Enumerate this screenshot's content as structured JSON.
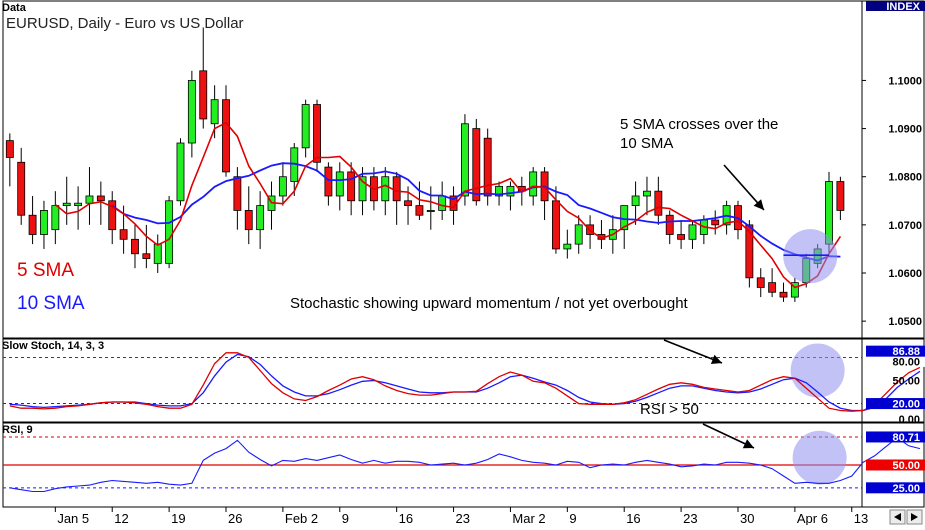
{
  "chart_data": [
    {
      "panel": "Data",
      "type": "candlestick",
      "title": "EURUSD, Daily - Euro vs US Dollar",
      "scale_label": "INDEX",
      "ylim": [
        1.0465,
        1.1165
      ],
      "yticks": [
        "1.1000",
        "1.0900",
        "1.0800",
        "1.0700",
        "1.0600",
        "1.0500"
      ],
      "series_legend": [
        {
          "name": "5 SMA",
          "color": "#e00000"
        },
        {
          "name": "10 SMA",
          "color": "#1a1aff"
        }
      ],
      "candles": [
        {
          "d": "Dec 30",
          "o": 1.0875,
          "h": 1.089,
          "l": 1.078,
          "c": 1.084
        },
        {
          "d": "Dec 31",
          "o": 1.083,
          "h": 1.086,
          "l": 1.07,
          "c": 1.072
        },
        {
          "d": "Jan 1",
          "o": 1.072,
          "h": 1.076,
          "l": 1.066,
          "c": 1.068
        },
        {
          "d": "Jan 2",
          "o": 1.068,
          "h": 1.075,
          "l": 1.065,
          "c": 1.073
        },
        {
          "d": "Jan 5",
          "o": 1.069,
          "h": 1.077,
          "l": 1.066,
          "c": 1.074
        },
        {
          "d": "Jan 6",
          "o": 1.074,
          "h": 1.08,
          "l": 1.07,
          "c": 1.0745
        },
        {
          "d": "Jan 7",
          "o": 1.074,
          "h": 1.078,
          "l": 1.069,
          "c": 1.0745
        },
        {
          "d": "Jan 8",
          "o": 1.0745,
          "h": 1.082,
          "l": 1.07,
          "c": 1.076
        },
        {
          "d": "Jan 9",
          "o": 1.076,
          "h": 1.079,
          "l": 1.07,
          "c": 1.075
        },
        {
          "d": "Jan 12",
          "o": 1.075,
          "h": 1.077,
          "l": 1.066,
          "c": 1.069
        },
        {
          "d": "Jan 13",
          "o": 1.069,
          "h": 1.074,
          "l": 1.064,
          "c": 1.067
        },
        {
          "d": "Jan 14",
          "o": 1.067,
          "h": 1.07,
          "l": 1.061,
          "c": 1.064
        },
        {
          "d": "Jan 15",
          "o": 1.064,
          "h": 1.07,
          "l": 1.061,
          "c": 1.063
        },
        {
          "d": "Jan 16",
          "o": 1.062,
          "h": 1.068,
          "l": 1.06,
          "c": 1.066
        },
        {
          "d": "Jan 19",
          "o": 1.062,
          "h": 1.076,
          "l": 1.061,
          "c": 1.075
        },
        {
          "d": "Jan 20",
          "o": 1.075,
          "h": 1.088,
          "l": 1.074,
          "c": 1.087
        },
        {
          "d": "Jan 21",
          "o": 1.087,
          "h": 1.102,
          "l": 1.084,
          "c": 1.1
        },
        {
          "d": "Jan 22",
          "o": 1.102,
          "h": 1.111,
          "l": 1.09,
          "c": 1.092
        },
        {
          "d": "Jan 23",
          "o": 1.091,
          "h": 1.099,
          "l": 1.088,
          "c": 1.096
        },
        {
          "d": "Jan 26",
          "o": 1.096,
          "h": 1.099,
          "l": 1.08,
          "c": 1.081
        },
        {
          "d": "Jan 27",
          "o": 1.08,
          "h": 1.082,
          "l": 1.069,
          "c": 1.073
        },
        {
          "d": "Jan 28",
          "o": 1.073,
          "h": 1.078,
          "l": 1.066,
          "c": 1.069
        },
        {
          "d": "Jan 29",
          "o": 1.069,
          "h": 1.077,
          "l": 1.065,
          "c": 1.074
        },
        {
          "d": "Jan 30",
          "o": 1.073,
          "h": 1.079,
          "l": 1.069,
          "c": 1.076
        },
        {
          "d": "Feb 2",
          "o": 1.076,
          "h": 1.083,
          "l": 1.074,
          "c": 1.08
        },
        {
          "d": "Feb 3",
          "o": 1.079,
          "h": 1.087,
          "l": 1.076,
          "c": 1.086
        },
        {
          "d": "Feb 4",
          "o": 1.086,
          "h": 1.096,
          "l": 1.084,
          "c": 1.095
        },
        {
          "d": "Feb 5",
          "o": 1.095,
          "h": 1.096,
          "l": 1.081,
          "c": 1.083
        },
        {
          "d": "Feb 6",
          "o": 1.082,
          "h": 1.083,
          "l": 1.074,
          "c": 1.076
        },
        {
          "d": "Feb 9",
          "o": 1.076,
          "h": 1.083,
          "l": 1.073,
          "c": 1.081
        },
        {
          "d": "Feb 10",
          "o": 1.081,
          "h": 1.083,
          "l": 1.072,
          "c": 1.075
        },
        {
          "d": "Feb 11",
          "o": 1.075,
          "h": 1.082,
          "l": 1.072,
          "c": 1.08
        },
        {
          "d": "Feb 12",
          "o": 1.08,
          "h": 1.082,
          "l": 1.073,
          "c": 1.075
        },
        {
          "d": "Feb 13",
          "o": 1.075,
          "h": 1.082,
          "l": 1.072,
          "c": 1.08
        },
        {
          "d": "Feb 16",
          "o": 1.08,
          "h": 1.081,
          "l": 1.07,
          "c": 1.075
        },
        {
          "d": "Feb 17",
          "o": 1.075,
          "h": 1.078,
          "l": 1.07,
          "c": 1.074
        },
        {
          "d": "Feb 18",
          "o": 1.074,
          "h": 1.079,
          "l": 1.071,
          "c": 1.072
        },
        {
          "d": "Feb 19",
          "o": 1.073,
          "h": 1.078,
          "l": 1.069,
          "c": 1.073
        },
        {
          "d": "Feb 20",
          "o": 1.073,
          "h": 1.079,
          "l": 1.071,
          "c": 1.076
        },
        {
          "d": "Feb 23",
          "o": 1.076,
          "h": 1.078,
          "l": 1.07,
          "c": 1.073
        },
        {
          "d": "Feb 24",
          "o": 1.076,
          "h": 1.093,
          "l": 1.074,
          "c": 1.091
        },
        {
          "d": "Feb 25",
          "o": 1.09,
          "h": 1.092,
          "l": 1.074,
          "c": 1.075
        },
        {
          "d": "Feb 26",
          "o": 1.088,
          "h": 1.09,
          "l": 1.074,
          "c": 1.076
        },
        {
          "d": "Feb 27",
          "o": 1.076,
          "h": 1.079,
          "l": 1.074,
          "c": 1.078
        },
        {
          "d": "Mar 2",
          "o": 1.076,
          "h": 1.079,
          "l": 1.073,
          "c": 1.078
        },
        {
          "d": "Mar 3",
          "o": 1.078,
          "h": 1.08,
          "l": 1.074,
          "c": 1.077
        },
        {
          "d": "Mar 4",
          "o": 1.076,
          "h": 1.082,
          "l": 1.074,
          "c": 1.081
        },
        {
          "d": "Mar 5",
          "o": 1.081,
          "h": 1.082,
          "l": 1.071,
          "c": 1.075
        },
        {
          "d": "Mar 6",
          "o": 1.075,
          "h": 1.078,
          "l": 1.064,
          "c": 1.065
        },
        {
          "d": "Mar 9",
          "o": 1.065,
          "h": 1.069,
          "l": 1.063,
          "c": 1.066
        },
        {
          "d": "Mar 10",
          "o": 1.066,
          "h": 1.072,
          "l": 1.064,
          "c": 1.07
        },
        {
          "d": "Mar 11",
          "o": 1.07,
          "h": 1.072,
          "l": 1.065,
          "c": 1.068
        },
        {
          "d": "Mar 12",
          "o": 1.068,
          "h": 1.071,
          "l": 1.065,
          "c": 1.067
        },
        {
          "d": "Mar 13",
          "o": 1.067,
          "h": 1.072,
          "l": 1.064,
          "c": 1.069
        },
        {
          "d": "Mar 16",
          "o": 1.069,
          "h": 1.074,
          "l": 1.065,
          "c": 1.074
        },
        {
          "d": "Mar 17",
          "o": 1.074,
          "h": 1.079,
          "l": 1.07,
          "c": 1.076
        },
        {
          "d": "Mar 18",
          "o": 1.076,
          "h": 1.08,
          "l": 1.072,
          "c": 1.077
        },
        {
          "d": "Mar 19",
          "o": 1.077,
          "h": 1.08,
          "l": 1.07,
          "c": 1.072
        },
        {
          "d": "Mar 20",
          "o": 1.072,
          "h": 1.073,
          "l": 1.066,
          "c": 1.068
        },
        {
          "d": "Mar 23",
          "o": 1.068,
          "h": 1.071,
          "l": 1.065,
          "c": 1.067
        },
        {
          "d": "Mar 24",
          "o": 1.067,
          "h": 1.071,
          "l": 1.065,
          "c": 1.07
        },
        {
          "d": "Mar 25",
          "o": 1.068,
          "h": 1.072,
          "l": 1.066,
          "c": 1.071
        },
        {
          "d": "Mar 26",
          "o": 1.071,
          "h": 1.073,
          "l": 1.068,
          "c": 1.07
        },
        {
          "d": "Mar 27",
          "o": 1.07,
          "h": 1.075,
          "l": 1.068,
          "c": 1.074
        },
        {
          "d": "Mar 30",
          "o": 1.074,
          "h": 1.075,
          "l": 1.067,
          "c": 1.069
        },
        {
          "d": "Mar 31",
          "o": 1.07,
          "h": 1.071,
          "l": 1.057,
          "c": 1.059
        },
        {
          "d": "Apr 1",
          "o": 1.059,
          "h": 1.061,
          "l": 1.055,
          "c": 1.057
        },
        {
          "d": "Apr 2",
          "o": 1.058,
          "h": 1.061,
          "l": 1.055,
          "c": 1.056
        },
        {
          "d": "Apr 3",
          "o": 1.056,
          "h": 1.058,
          "l": 1.054,
          "c": 1.055
        },
        {
          "d": "Apr 6",
          "o": 1.055,
          "h": 1.059,
          "l": 1.054,
          "c": 1.058
        },
        {
          "d": "Apr 7",
          "o": 1.058,
          "h": 1.064,
          "l": 1.057,
          "c": 1.063
        },
        {
          "d": "Apr 8",
          "o": 1.062,
          "h": 1.066,
          "l": 1.061,
          "c": 1.065
        },
        {
          "d": "Apr 9",
          "o": 1.066,
          "h": 1.081,
          "l": 1.064,
          "c": 1.079
        },
        {
          "d": "Apr 10",
          "o": 1.079,
          "h": 1.08,
          "l": 1.071,
          "c": 1.073
        }
      ],
      "annotations": [
        "5 SMA crosses over the",
        "10 SMA",
        "Stochastic showing upward momentum / not yet overbought"
      ]
    },
    {
      "panel": "Slow Stoch, 14, 3, 3",
      "type": "line",
      "ylim": [
        -4,
        104
      ],
      "levels": [
        80,
        50,
        20
      ],
      "level_labels": [
        "80.00",
        "50.00",
        "20.00",
        "0.00"
      ],
      "current_labels": [
        "86.88",
        "80.00"
      ],
      "series": [
        {
          "name": "%K",
          "color": "#e00000",
          "values": [
            17,
            14,
            14,
            13,
            14,
            16,
            17,
            19,
            21,
            22,
            22,
            21,
            19,
            16,
            14,
            14,
            19,
            44,
            72,
            86,
            86,
            80,
            63,
            46,
            34,
            26,
            24,
            29,
            37,
            44,
            52,
            55,
            51,
            43,
            37,
            33,
            31,
            31,
            33,
            35,
            35,
            36,
            46,
            55,
            61,
            57,
            49,
            47,
            40,
            30,
            20,
            19,
            19,
            19,
            21,
            25,
            32,
            39,
            45,
            47,
            45,
            41,
            39,
            37,
            35,
            37,
            44,
            51,
            55,
            53,
            40,
            27,
            14,
            11,
            10,
            11,
            18,
            33,
            48,
            60,
            67
          ]
        },
        {
          "name": "%D",
          "color": "#1a1aff",
          "values": [
            19,
            18,
            16,
            15,
            16,
            17,
            18,
            19,
            21,
            22,
            22,
            22,
            20,
            18,
            17,
            17,
            20,
            34,
            56,
            74,
            84,
            81,
            71,
            56,
            43,
            35,
            30,
            30,
            33,
            38,
            44,
            49,
            50,
            47,
            43,
            39,
            35,
            34,
            34,
            35,
            35,
            35,
            40,
            47,
            55,
            57,
            53,
            48,
            44,
            37,
            28,
            22,
            20,
            19,
            20,
            23,
            28,
            34,
            40,
            43,
            43,
            40,
            37,
            35,
            34,
            35,
            39,
            45,
            51,
            53,
            47,
            35,
            22,
            14,
            11,
            11,
            15,
            26,
            41,
            52,
            62
          ]
        }
      ]
    },
    {
      "panel": "RSI, 9",
      "type": "line",
      "ylim": [
        4,
        96
      ],
      "levels": [
        80.71,
        50,
        25
      ],
      "level_labels": [
        "80.71",
        "50.00",
        "25.00"
      ],
      "series": [
        {
          "name": "RSI",
          "color": "#1a1aff",
          "values": [
            25,
            23,
            21,
            21,
            24,
            26,
            27,
            28,
            31,
            33,
            32,
            31,
            30,
            31,
            29,
            28,
            30,
            55,
            63,
            68,
            77,
            64,
            56,
            49,
            55,
            54,
            57,
            55,
            58,
            61,
            56,
            52,
            55,
            52,
            54,
            54,
            53,
            50,
            51,
            52,
            50,
            52,
            56,
            62,
            59,
            55,
            53,
            52,
            50,
            54,
            53,
            47,
            50,
            51,
            50,
            53,
            55,
            53,
            51,
            48,
            49,
            51,
            50,
            53,
            53,
            52,
            50,
            46,
            38,
            30,
            31,
            30,
            30,
            33,
            38,
            53,
            60,
            70,
            80,
            71,
            68
          ]
        }
      ],
      "annotations": [
        "RSI > 50"
      ]
    }
  ],
  "x_axis": {
    "labels": [
      "Jan 5",
      "12",
      "19",
      "26",
      "Feb 2",
      "9",
      "16",
      "23",
      "Mar 2",
      "9",
      "16",
      "23",
      "30",
      "Apr 6",
      "13"
    ]
  },
  "colors": {
    "bull": "#22ee22",
    "bear": "#ee1111",
    "highlight": "#9090f0",
    "tag_blue": "#0000d0",
    "tag_red": "#ee0000",
    "tag_navy": "#000080"
  },
  "icons": [
    "scroll-left-icon",
    "scroll-right-icon"
  ]
}
